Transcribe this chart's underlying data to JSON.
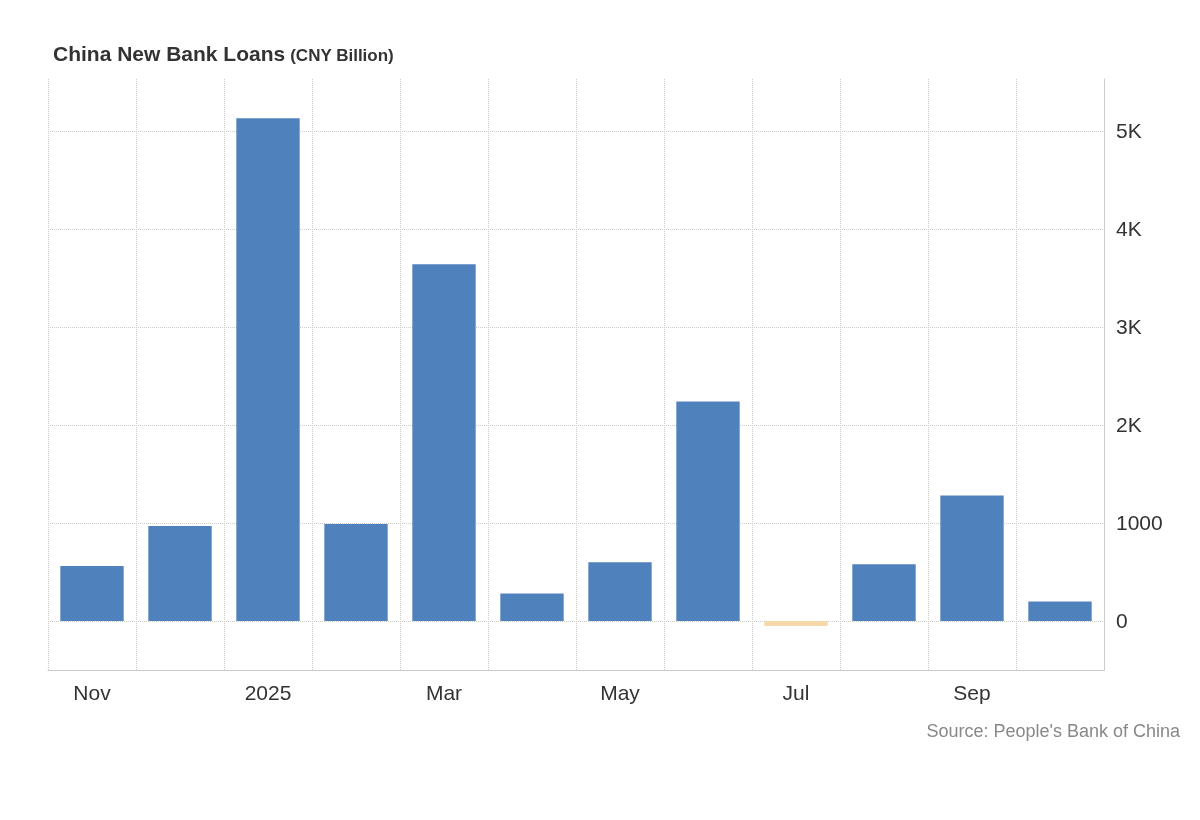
{
  "chart_data": {
    "type": "bar",
    "title": "China New Bank Loans",
    "subtitle": "(CNY Billion)",
    "categories": [
      "Nov",
      null,
      "2025",
      null,
      "Mar",
      null,
      "May",
      null,
      "Jul",
      null,
      "Sep",
      null
    ],
    "values": [
      560,
      970,
      5130,
      990,
      3640,
      280,
      600,
      2240,
      -50,
      580,
      1280,
      200
    ],
    "colors": [
      "#4f81bd",
      "#4f81bd",
      "#4f81bd",
      "#4f81bd",
      "#4f81bd",
      "#4f81bd",
      "#4f81bd",
      "#4f81bd",
      "#f5d9a8",
      "#4f81bd",
      "#4f81bd",
      "#4f81bd"
    ],
    "ylim": [
      -500,
      5530
    ],
    "yticks": [
      0,
      1000,
      {
        "value": 2000,
        "label": "2K"
      },
      {
        "value": 3000,
        "label": "3K"
      },
      {
        "value": 4000,
        "label": "4K"
      },
      {
        "value": 5000,
        "label": "5K"
      }
    ],
    "grid": true,
    "annotations": [
      "Source: People's Bank of China"
    ]
  }
}
